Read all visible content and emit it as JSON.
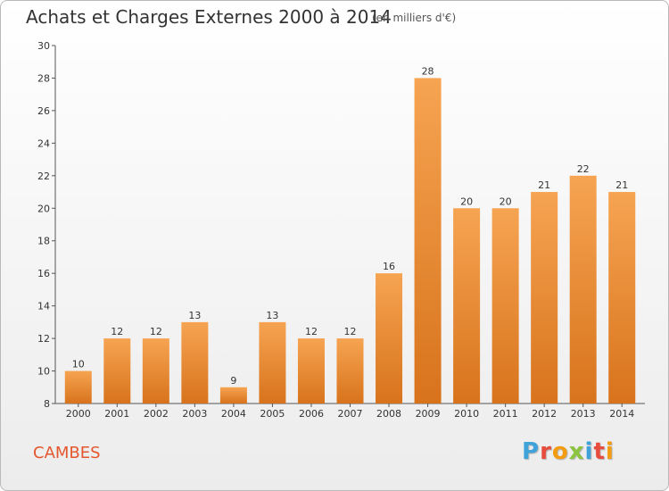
{
  "title": "Achats et Charges Externes 2000 à 2014",
  "subtitle": "(en milliers d'€)",
  "commune": "CAMBES",
  "logo_text": "Proxiti",
  "colors": {
    "bar_light": "#f6a452",
    "bar_dark": "#d8731c",
    "commune": "#e4572e",
    "logo": [
      "#3fa3da",
      "#e84c3d",
      "#f39c12",
      "#8cc43f",
      "#3fa3da",
      "#e84c3d",
      "#f39c12"
    ]
  },
  "chart_data": {
    "type": "bar",
    "categories": [
      "2000",
      "2001",
      "2002",
      "2003",
      "2004",
      "2005",
      "2006",
      "2007",
      "2008",
      "2009",
      "2010",
      "2011",
      "2012",
      "2013",
      "2014"
    ],
    "values": [
      10,
      12,
      12,
      13,
      9,
      13,
      12,
      12,
      16,
      28,
      20,
      20,
      21,
      22,
      21
    ],
    "ylim": [
      8,
      30
    ],
    "yticks": [
      8,
      10,
      12,
      14,
      16,
      18,
      20,
      22,
      24,
      26,
      28,
      30
    ],
    "grid": false,
    "xlabel": "",
    "ylabel": ""
  }
}
